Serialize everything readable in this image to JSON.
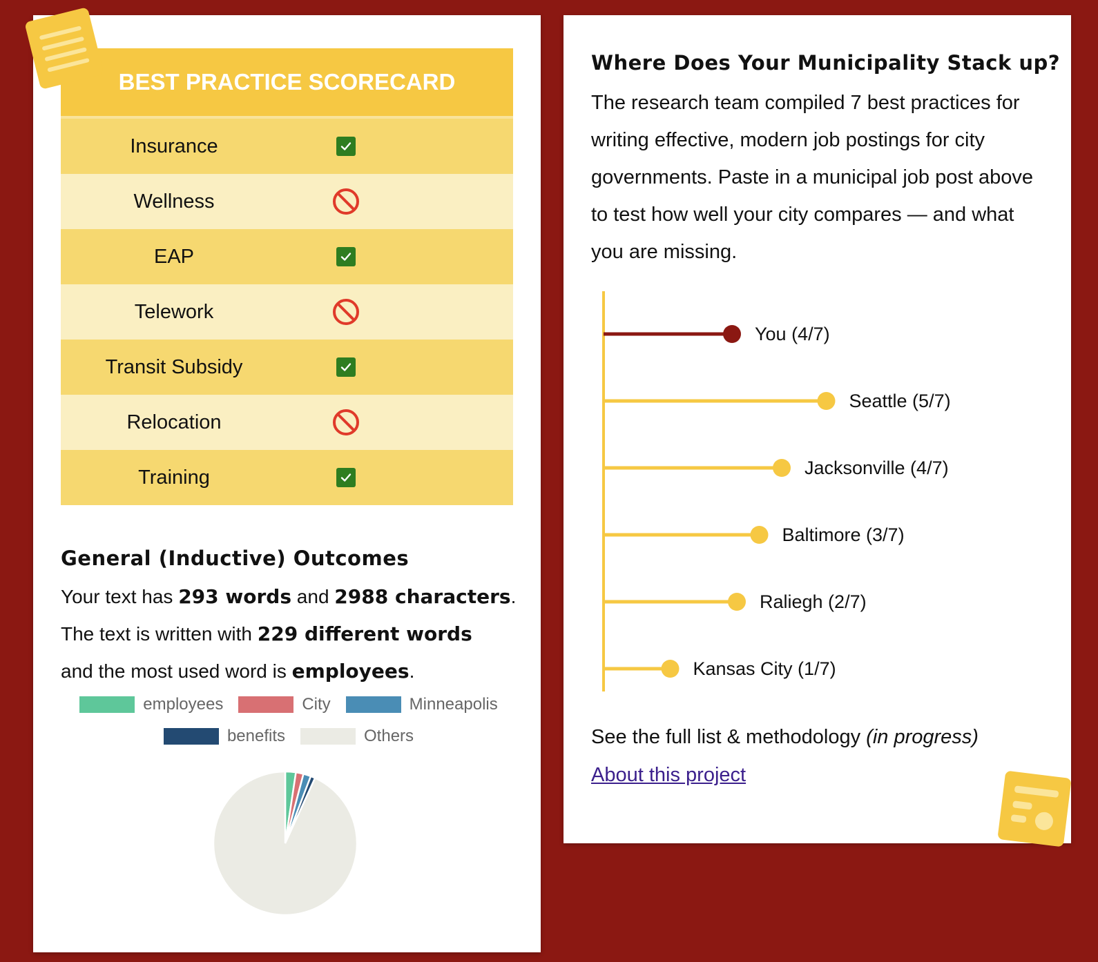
{
  "scorecard": {
    "title": "BEST PRACTICE SCORECARD",
    "items": [
      {
        "label": "Insurance",
        "status": "pass"
      },
      {
        "label": "Wellness",
        "status": "fail"
      },
      {
        "label": "EAP",
        "status": "pass"
      },
      {
        "label": "Telework",
        "status": "fail"
      },
      {
        "label": "Transit Subsidy",
        "status": "pass"
      },
      {
        "label": "Relocation",
        "status": "fail"
      },
      {
        "label": "Training",
        "status": "pass"
      }
    ],
    "icons": {
      "pass": "check-icon",
      "fail": "prohibited-icon"
    },
    "colors": {
      "header": "#f6c843",
      "row_dark": "#f6d870",
      "row_light": "#faefc2",
      "check": "#2e7d20",
      "prohibited": "#e03a2a"
    }
  },
  "outcomes": {
    "title": "General (Inductive) Outcomes",
    "line1_a": "Your text has ",
    "words": "293 words",
    "line1_b": " and ",
    "characters": "2988 characters",
    "line1_c": ".",
    "line2_a": "The text is written with ",
    "different_words": "229 different words",
    "line3_a": "and the most used word is ",
    "most_used": "employees",
    "line3_b": "."
  },
  "chart_data": {
    "type": "pie",
    "legend_placement": "top",
    "series": [
      {
        "name": "employees",
        "value": 7,
        "color": "#5ec79a"
      },
      {
        "name": "City",
        "value": 5,
        "color": "#d87073"
      },
      {
        "name": "Minneapolis",
        "value": 5,
        "color": "#4a8db5"
      },
      {
        "name": "benefits",
        "value": 3,
        "color": "#234a72"
      },
      {
        "name": "Others",
        "value": 273,
        "color": "#ebebe4"
      }
    ]
  },
  "municipality": {
    "title": "Where Does Your Municipality Stack up?",
    "description": "The research team compiled 7 best practices for writing effective, modern job postings for city governments. Paste in a municipal job post above to test how well your city compares — and what you are missing.",
    "comparison": {
      "max": 7,
      "items": [
        {
          "label": "You (4/7)",
          "score": 4,
          "highlight": true
        },
        {
          "label": "Seattle (5/7)",
          "score": 5,
          "highlight": false
        },
        {
          "label": "Jacksonville (4/7)",
          "score": 4,
          "highlight": false
        },
        {
          "label": "Baltimore (3/7)",
          "score": 3,
          "highlight": false
        },
        {
          "label": "Raliegh (2/7)",
          "score": 2,
          "highlight": false
        },
        {
          "label": "Kansas City (1/7)",
          "score": 1,
          "highlight": false
        }
      ],
      "colors": {
        "you": "#8b1812",
        "others": "#f6c843"
      }
    },
    "methodology_prefix": "See the full list & methodology ",
    "methodology_note": "(in progress)",
    "about_link": "About this project"
  },
  "stickers": {
    "top_left": "document-icon",
    "bottom_right": "report-icon",
    "color": "#f6c843"
  }
}
